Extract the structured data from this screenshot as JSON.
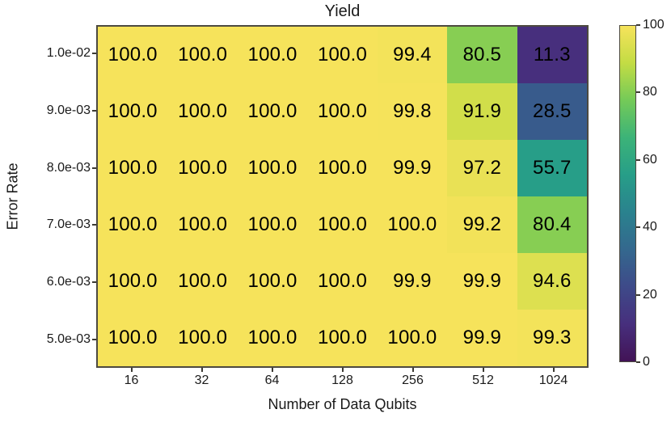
{
  "chart_data": {
    "type": "heatmap",
    "title": "Yield",
    "xlabel": "Number of Data Qubits",
    "ylabel": "Error Rate",
    "x_categories": [
      "16",
      "32",
      "64",
      "128",
      "256",
      "512",
      "1024"
    ],
    "y_categories": [
      "1.0e-02",
      "9.0e-03",
      "8.0e-03",
      "7.0e-03",
      "6.0e-03",
      "5.0e-03"
    ],
    "values": [
      [
        100.0,
        100.0,
        100.0,
        100.0,
        99.4,
        80.5,
        11.3
      ],
      [
        100.0,
        100.0,
        100.0,
        100.0,
        99.8,
        91.9,
        28.5
      ],
      [
        100.0,
        100.0,
        100.0,
        100.0,
        99.9,
        97.2,
        55.7
      ],
      [
        100.0,
        100.0,
        100.0,
        100.0,
        100.0,
        99.2,
        80.4
      ],
      [
        100.0,
        100.0,
        100.0,
        100.0,
        99.9,
        99.9,
        94.6
      ],
      [
        100.0,
        100.0,
        100.0,
        100.0,
        100.0,
        99.9,
        99.3
      ]
    ],
    "value_decimals": 1,
    "vmin": 0,
    "vmax": 100,
    "colormap": "viridis",
    "colormap_stops": [
      "#421356",
      "#472f7d",
      "#3e4a89",
      "#34688e",
      "#2a828e",
      "#279e88",
      "#3cb378",
      "#74ca58",
      "#c3dc44",
      "#f6e35b"
    ],
    "colorbar_ticks": [
      0,
      20,
      40,
      60,
      80,
      100
    ],
    "legend_position": "right-colorbar",
    "grid": false,
    "frame_color": "#4d4a40",
    "cell_text_color": "#000000"
  }
}
